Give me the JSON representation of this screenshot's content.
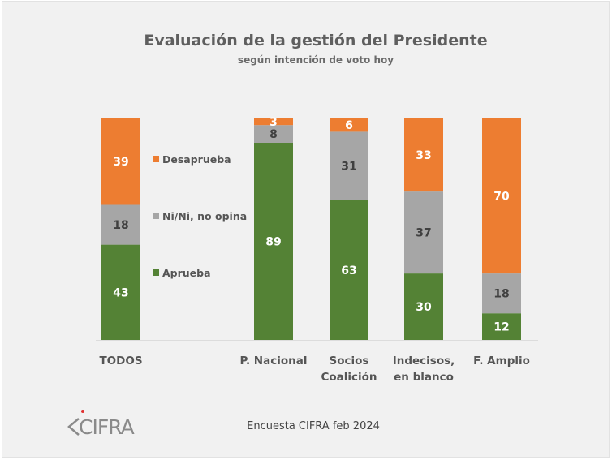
{
  "chart_data": {
    "type": "bar",
    "stacked": true,
    "orientation": "vertical",
    "title": "Evaluación de la gestión del Presidente",
    "subtitle": "según intención de voto hoy",
    "xlabel": "",
    "ylabel": "",
    "ylim": [
      0,
      100
    ],
    "grid": false,
    "legend_position": "right-of-first-bar",
    "categories": [
      [
        "TODOS"
      ],
      [
        "P. Nacional"
      ],
      [
        "Socios",
        "Coalición"
      ],
      [
        "Indecisos,",
        "en blanco"
      ],
      [
        "F. Amplio"
      ]
    ],
    "series": [
      {
        "name": "Aprueba",
        "color": "#548235",
        "label_color": "#ffffff",
        "values": [
          43,
          89,
          63,
          30,
          12
        ]
      },
      {
        "name": "Ni/Ni, no opina",
        "color": "#a6a6a6",
        "label_color": "#404040",
        "values": [
          18,
          8,
          31,
          37,
          18
        ]
      },
      {
        "name": "Desaprueba",
        "color": "#ed7d31",
        "label_color": "#ffffff",
        "values": [
          39,
          3,
          6,
          33,
          70
        ]
      }
    ],
    "legend_order": [
      "Desaprueba",
      "Ni/Ni, no opina",
      "Aprueba"
    ],
    "source": "Encuesta CIFRA feb 2024"
  },
  "logo": {
    "text": "CIFRA",
    "dot_color": "#e03030"
  },
  "colors": {
    "background": "#f1f1f1",
    "text": "#555555"
  }
}
